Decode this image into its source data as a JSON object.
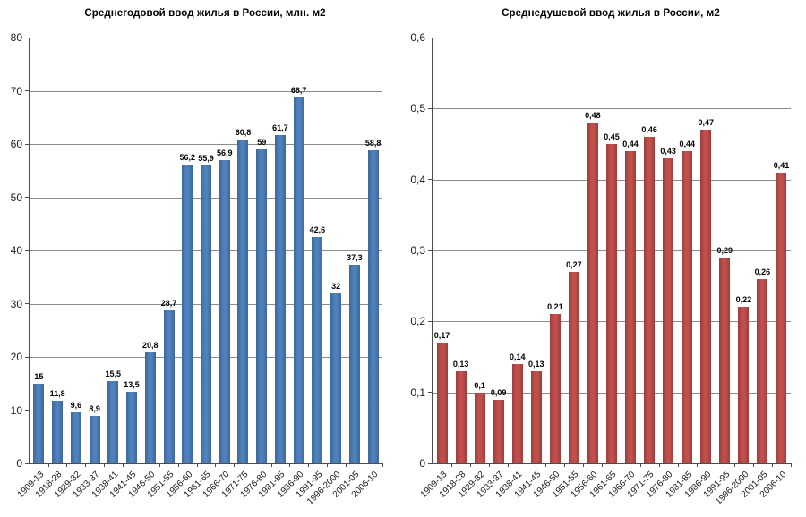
{
  "figure": {
    "background": "#ffffff",
    "grid_color": "#8c8c8c",
    "axis_color": "#4d4d4d",
    "text_color": "#1a1a1a"
  },
  "chart_data": [
    {
      "type": "bar",
      "title": "Среднегодовой ввод жилья в России, млн. м2",
      "xlabel": "",
      "ylabel": "",
      "ylim": [
        0,
        80
      ],
      "ytick_step": 10,
      "ytick_labels": [
        "0",
        "10",
        "20",
        "30",
        "40",
        "50",
        "60",
        "70",
        "80"
      ],
      "grid": true,
      "legend": "none",
      "decimal_separator": ",",
      "categories": [
        "1909-13",
        "1918-28",
        "1929-32",
        "1933-37",
        "1938-41",
        "1941-45",
        "1946-50",
        "1951-55",
        "1956-60",
        "1961-65",
        "1966-70",
        "1971-75",
        "1976-80",
        "1981-85",
        "1986-90",
        "1991-95",
        "1996-2000",
        "2001-05",
        "2006-10"
      ],
      "values": [
        15,
        11.8,
        9.6,
        8.9,
        15.5,
        13.5,
        20.8,
        28.7,
        56.2,
        55.9,
        56.9,
        60.8,
        59,
        61.7,
        68.7,
        42.6,
        32,
        37.3,
        58.8
      ],
      "value_labels": [
        "15",
        "11,8",
        "9,6",
        "8,9",
        "15,5",
        "13,5",
        "20,8",
        "28,7",
        "56,2",
        "55,9",
        "56,9",
        "60,8",
        "59",
        "61,7",
        "68,7",
        "42,6",
        "32",
        "37,3",
        "58,8"
      ],
      "bar_color": "#4f81bd",
      "bar_edge_color": "#3d6899"
    },
    {
      "type": "bar",
      "title": "Среднедушевой ввод жилья в России, м2",
      "xlabel": "",
      "ylabel": "",
      "ylim": [
        0,
        0.6
      ],
      "ytick_step": 0.1,
      "ytick_labels": [
        "0",
        "0,1",
        "0,2",
        "0,3",
        "0,4",
        "0,5",
        "0,6"
      ],
      "grid": true,
      "legend": "none",
      "decimal_separator": ",",
      "categories": [
        "1909-13",
        "1918-28",
        "1929-32",
        "1933-37",
        "1938-41",
        "1941-45",
        "1946-50",
        "1951-55",
        "1956-60",
        "1961-65",
        "1966-70",
        "1971-75",
        "1976-80",
        "1981-85",
        "1986-90",
        "1991-95",
        "1996-2000",
        "2001-05",
        "2006-10"
      ],
      "values": [
        0.17,
        0.13,
        0.1,
        0.09,
        0.14,
        0.13,
        0.21,
        0.27,
        0.48,
        0.45,
        0.44,
        0.46,
        0.43,
        0.44,
        0.47,
        0.29,
        0.22,
        0.26,
        0.41
      ],
      "value_labels": [
        "0,17",
        "0,13",
        "0,1",
        "0,09",
        "0,14",
        "0,13",
        "0,21",
        "0,27",
        "0,48",
        "0,45",
        "0,44",
        "0,46",
        "0,43",
        "0,44",
        "0,47",
        "0,29",
        "0,22",
        "0,26",
        "0,41"
      ],
      "bar_color": "#c0504d",
      "bar_edge_color": "#9e3d3a"
    }
  ]
}
